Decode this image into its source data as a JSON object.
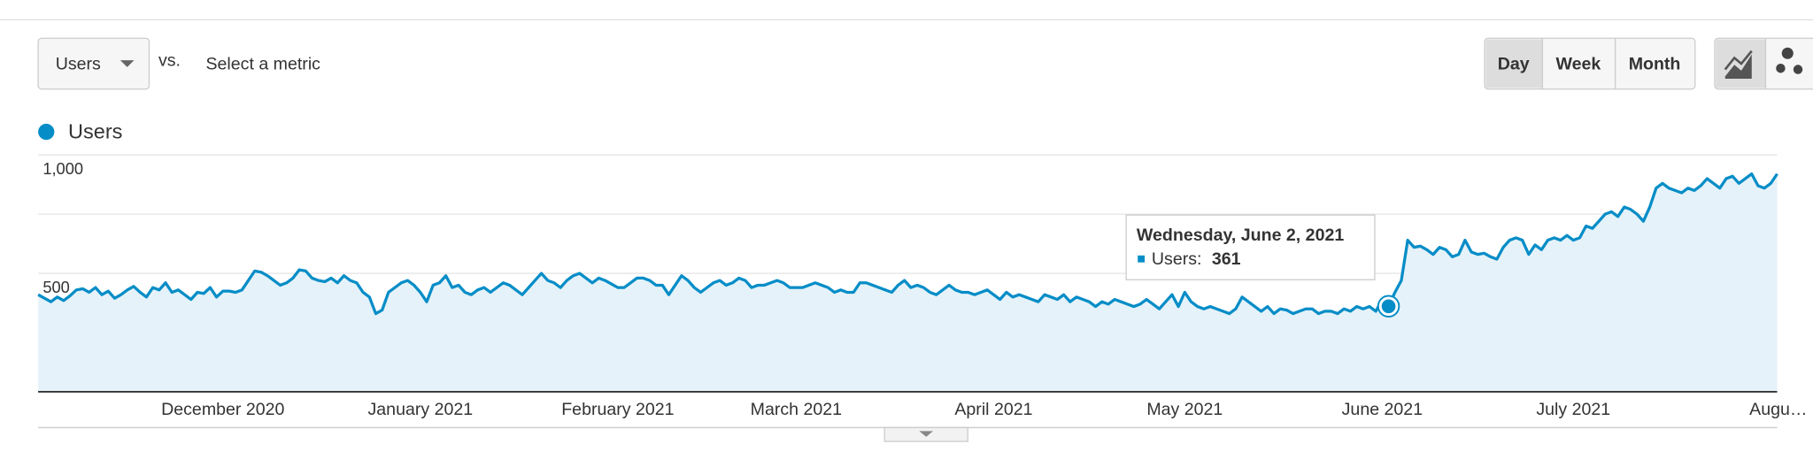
{
  "controls": {
    "metric": "Users",
    "vs": "vs.",
    "select_metric": "Select a metric",
    "periods": [
      "Day",
      "Week",
      "Month"
    ]
  },
  "chart_data": {
    "type": "line",
    "categories": [
      null,
      null,
      null,
      null,
      null,
      null,
      null,
      null,
      null,
      null,
      null,
      null,
      null,
      null,
      null,
      null,
      null,
      null,
      null,
      null,
      null,
      null,
      null,
      null,
      null,
      null,
      null,
      null,
      null,
      "December 2020",
      null,
      null,
      null,
      null,
      null,
      null,
      null,
      null,
      null,
      null,
      null,
      null,
      null,
      null,
      null,
      null,
      null,
      null,
      null,
      null,
      null,
      null,
      null,
      null,
      null,
      null,
      null,
      null,
      null,
      null,
      "January 2021",
      null,
      null,
      null,
      null,
      null,
      null,
      null,
      null,
      null,
      null,
      null,
      null,
      null,
      null,
      null,
      null,
      null,
      null,
      null,
      null,
      null,
      null,
      null,
      null,
      null,
      null,
      null,
      null,
      null,
      null,
      "February 2021",
      null,
      null,
      null,
      null,
      null,
      null,
      null,
      null,
      null,
      null,
      null,
      null,
      null,
      null,
      null,
      null,
      null,
      null,
      null,
      null,
      null,
      null,
      null,
      null,
      null,
      null,
      null,
      "March 2021",
      null,
      null,
      null,
      null,
      null,
      null,
      null,
      null,
      null,
      null,
      null,
      null,
      null,
      null,
      null,
      null,
      null,
      null,
      null,
      null,
      null,
      null,
      null,
      null,
      null,
      null,
      null,
      null,
      null,
      null,
      "April 2021",
      null,
      null,
      null,
      null,
      null,
      null,
      null,
      null,
      null,
      null,
      null,
      null,
      null,
      null,
      null,
      null,
      null,
      null,
      null,
      null,
      null,
      null,
      null,
      null,
      null,
      null,
      null,
      null,
      null,
      "May 2021",
      null,
      null,
      null,
      null,
      null,
      null,
      null,
      null,
      null,
      null,
      null,
      null,
      null,
      null,
      null,
      null,
      null,
      null,
      null,
      null,
      null,
      null,
      null,
      null,
      null,
      null,
      null,
      null,
      null,
      null,
      "June 2021",
      null,
      null,
      null,
      null,
      null,
      null,
      null,
      null,
      null,
      null,
      null,
      null,
      null,
      null,
      null,
      null,
      null,
      null,
      null,
      null,
      null,
      null,
      null,
      null,
      null,
      null,
      null,
      null,
      null,
      "July 2021",
      null,
      null,
      null,
      null,
      null,
      null,
      null,
      null,
      null,
      null,
      null,
      null,
      null,
      null,
      null,
      null,
      null,
      null,
      null,
      null,
      null,
      null,
      null,
      null,
      null,
      null,
      null,
      null,
      null,
      null,
      "Augu…",
      null
    ],
    "series": [
      {
        "name": "Users",
        "color": "#058dc7",
        "values": [
          410,
          395,
          380,
          400,
          385,
          405,
          430,
          435,
          420,
          440,
          410,
          425,
          395,
          410,
          430,
          445,
          420,
          400,
          440,
          430,
          460,
          420,
          430,
          410,
          390,
          420,
          415,
          440,
          400,
          425,
          425,
          420,
          430,
          470,
          510,
          505,
          490,
          470,
          450,
          460,
          480,
          515,
          510,
          480,
          470,
          465,
          480,
          460,
          490,
          470,
          460,
          420,
          400,
          330,
          345,
          420,
          440,
          460,
          470,
          450,
          420,
          380,
          450,
          460,
          490,
          440,
          450,
          420,
          410,
          430,
          440,
          420,
          440,
          460,
          450,
          430,
          410,
          440,
          470,
          500,
          470,
          460,
          440,
          470,
          490,
          500,
          480,
          460,
          480,
          470,
          455,
          440,
          440,
          460,
          480,
          480,
          470,
          450,
          450,
          410,
          450,
          490,
          470,
          440,
          420,
          440,
          460,
          470,
          450,
          460,
          480,
          470,
          440,
          450,
          450,
          460,
          470,
          460,
          440,
          440,
          440,
          450,
          460,
          450,
          440,
          420,
          430,
          420,
          420,
          460,
          460,
          450,
          440,
          430,
          420,
          450,
          470,
          440,
          450,
          440,
          420,
          410,
          430,
          450,
          430,
          420,
          420,
          410,
          420,
          430,
          410,
          390,
          420,
          400,
          410,
          400,
          390,
          380,
          410,
          400,
          390,
          410,
          380,
          400,
          390,
          380,
          360,
          380,
          370,
          390,
          380,
          370,
          360,
          370,
          390,
          370,
          350,
          380,
          410,
          360,
          420,
          380,
          360,
          350,
          360,
          350,
          340,
          330,
          350,
          400,
          380,
          360,
          340,
          360,
          330,
          350,
          345,
          330,
          340,
          350,
          350,
          330,
          340,
          340,
          330,
          350,
          340,
          360,
          350,
          360,
          340,
          390,
          361,
          420,
          470,
          640,
          610,
          615,
          600,
          580,
          610,
          600,
          570,
          580,
          640,
          590,
          580,
          585,
          570,
          560,
          610,
          640,
          650,
          640,
          580,
          620,
          600,
          640,
          650,
          640,
          660,
          640,
          650,
          700,
          690,
          720,
          750,
          760,
          740,
          780,
          770,
          750,
          720,
          780,
          860,
          880,
          860,
          850,
          840,
          860,
          850,
          870,
          900,
          880,
          860,
          900,
          910,
          880,
          900,
          920,
          870,
          860,
          880,
          920
        ]
      }
    ],
    "ylim": [
      0,
      1000
    ],
    "yticks": [
      500,
      {
        "value": 1000,
        "label": "1,000"
      }
    ],
    "minor_gridlines": [
      0,
      250,
      750
    ],
    "area_fill": "#e5f2f9",
    "tooltip": {
      "title": "Wednesday, June 2, 2021",
      "label": "Users:"
    }
  }
}
